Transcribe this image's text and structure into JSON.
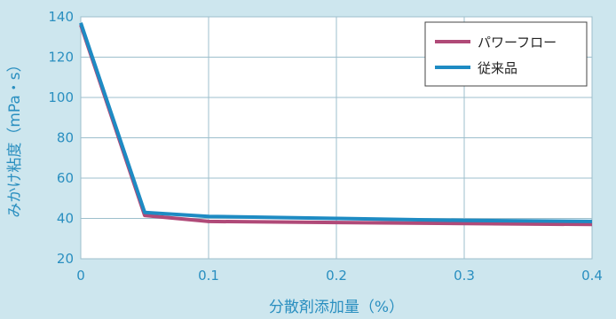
{
  "chart_data": {
    "type": "line",
    "xlabel": "分散剤添加量（%）",
    "ylabel": "みかけ粘度（mPa・s）",
    "xlim": [
      0,
      0.4
    ],
    "ylim": [
      20,
      140
    ],
    "xticks": [
      "0",
      "0.1",
      "0.2",
      "0.3",
      "0.4"
    ],
    "yticks": [
      "20",
      "40",
      "60",
      "80",
      "100",
      "120",
      "140"
    ],
    "grid": true,
    "legend": "top-right",
    "series": [
      {
        "name": "パワーフロー",
        "color": "#b04a78",
        "x": [
          0,
          0.05,
          0.1,
          0.2,
          0.3,
          0.4
        ],
        "y": [
          136,
          41.5,
          38.5,
          38,
          37.5,
          37
        ]
      },
      {
        "name": "従来品",
        "color": "#1e8bc3",
        "x": [
          0,
          0.05,
          0.1,
          0.2,
          0.3,
          0.4
        ],
        "y": [
          137,
          43,
          41,
          40,
          39,
          38.5
        ]
      }
    ]
  }
}
